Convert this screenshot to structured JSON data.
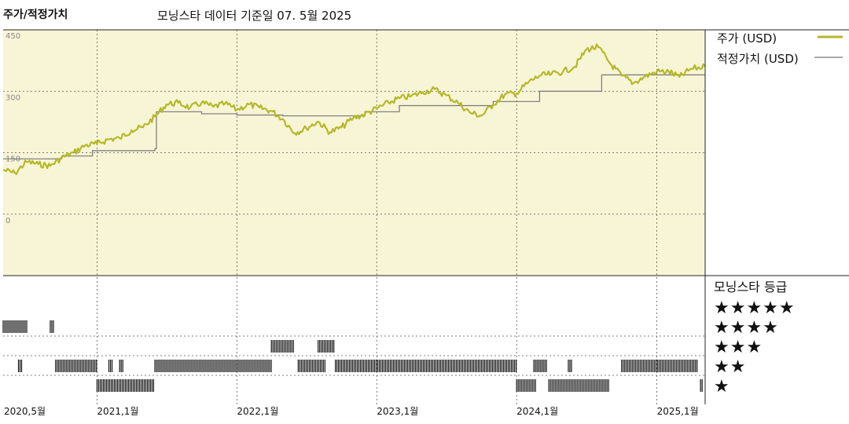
{
  "header": {
    "title": "주가/적정가치",
    "subtitle": "모닝스타 데이터 기준일 07. 5월 2025"
  },
  "legend": {
    "price_label": "주가 (USD)",
    "fair_label": "적정가치 (USD)"
  },
  "colors": {
    "price": "#b5b82a",
    "fair_value": "#777777",
    "plot_bg": "#f8f5d6",
    "star_band": "#111111"
  },
  "rating_panel": {
    "heading": "모닝스타 등급",
    "rows": [
      "★★★★★",
      "★★★★",
      "★★★",
      "★★",
      "★"
    ]
  },
  "chart_data": {
    "type": "line",
    "title": "주가/적정가치",
    "subtitle": "모닝스타 데이터 기준일 07. 5월 2025",
    "xlabel": "",
    "ylabel": "",
    "ylim": [
      -150,
      450
    ],
    "xlim": [
      "2020-05-01",
      "2025-05-07"
    ],
    "y_ticks": [
      0,
      150,
      300,
      450
    ],
    "y_tick_labels": [
      "0",
      "150",
      "300",
      "450"
    ],
    "x_ticks": [
      "2020-05-01",
      "2021-01-01",
      "2022-01-01",
      "2023-01-01",
      "2024-01-01",
      "2025-01-01"
    ],
    "x_tick_labels": [
      "2020,5월",
      "2021,1월",
      "2022,1월",
      "2023,1월",
      "2024,1월",
      "2025,1월"
    ],
    "grid": true,
    "legend_position": "right",
    "series": [
      {
        "name": "주가 (USD)",
        "points": [
          [
            "2020-05-01",
            108
          ],
          [
            "2020-06-01",
            100
          ],
          [
            "2020-07-01",
            128
          ],
          [
            "2020-08-01",
            122
          ],
          [
            "2020-09-01",
            118
          ],
          [
            "2020-10-01",
            138
          ],
          [
            "2020-11-01",
            150
          ],
          [
            "2020-12-01",
            168
          ],
          [
            "2021-01-01",
            172
          ],
          [
            "2021-02-01",
            183
          ],
          [
            "2021-03-01",
            185
          ],
          [
            "2021-04-01",
            205
          ],
          [
            "2021-05-01",
            212
          ],
          [
            "2021-06-01",
            238
          ],
          [
            "2021-07-01",
            268
          ],
          [
            "2021-08-01",
            272
          ],
          [
            "2021-09-01",
            260
          ],
          [
            "2021-10-01",
            272
          ],
          [
            "2021-11-01",
            262
          ],
          [
            "2021-12-01",
            270
          ],
          [
            "2022-01-01",
            255
          ],
          [
            "2022-02-01",
            268
          ],
          [
            "2022-03-01",
            260
          ],
          [
            "2022-04-01",
            252
          ],
          [
            "2022-05-01",
            232
          ],
          [
            "2022-06-01",
            198
          ],
          [
            "2022-07-01",
            210
          ],
          [
            "2022-08-01",
            226
          ],
          [
            "2022-09-01",
            200
          ],
          [
            "2022-10-01",
            212
          ],
          [
            "2022-11-01",
            235
          ],
          [
            "2022-12-01",
            244
          ],
          [
            "2023-01-01",
            258
          ],
          [
            "2023-02-01",
            272
          ],
          [
            "2023-03-01",
            283
          ],
          [
            "2023-04-01",
            288
          ],
          [
            "2023-05-01",
            298
          ],
          [
            "2023-06-01",
            305
          ],
          [
            "2023-07-01",
            290
          ],
          [
            "2023-08-01",
            272
          ],
          [
            "2023-09-01",
            248
          ],
          [
            "2023-10-01",
            240
          ],
          [
            "2023-11-01",
            268
          ],
          [
            "2023-12-01",
            292
          ],
          [
            "2024-01-01",
            295
          ],
          [
            "2024-02-01",
            322
          ],
          [
            "2024-03-01",
            338
          ],
          [
            "2024-04-01",
            342
          ],
          [
            "2024-05-01",
            348
          ],
          [
            "2024-06-01",
            360
          ],
          [
            "2024-07-01",
            402
          ],
          [
            "2024-08-01",
            408
          ],
          [
            "2024-09-01",
            368
          ],
          [
            "2024-10-01",
            338
          ],
          [
            "2024-11-01",
            320
          ],
          [
            "2024-12-01",
            336
          ],
          [
            "2025-01-01",
            348
          ],
          [
            "2025-02-01",
            348
          ],
          [
            "2025-03-01",
            335
          ],
          [
            "2025-04-01",
            355
          ],
          [
            "2025-05-07",
            360
          ]
        ]
      },
      {
        "name": "적정가치 (USD)",
        "step": true,
        "points": [
          [
            "2020-05-01",
            135
          ],
          [
            "2020-10-01",
            142
          ],
          [
            "2020-12-20",
            155
          ],
          [
            "2021-06-01",
            160
          ],
          [
            "2021-06-05",
            250
          ],
          [
            "2021-10-01",
            245
          ],
          [
            "2022-01-01",
            242
          ],
          [
            "2022-05-01",
            240
          ],
          [
            "2022-12-01",
            250
          ],
          [
            "2023-03-01",
            265
          ],
          [
            "2023-11-01",
            275
          ],
          [
            "2024-03-01",
            300
          ],
          [
            "2024-08-10",
            340
          ],
          [
            "2025-05-07",
            340
          ]
        ]
      }
    ],
    "star_rating_periods": [
      {
        "stars": 5,
        "from": "2020-05-01",
        "to": "2020-07-05"
      },
      {
        "stars": 5,
        "from": "2020-09-01",
        "to": "2020-09-10"
      },
      {
        "stars": 3,
        "from": "2020-06-10",
        "to": "2020-06-20"
      },
      {
        "stars": 3,
        "from": "2020-09-15",
        "to": "2021-01-01"
      },
      {
        "stars": 3,
        "from": "2021-02-01",
        "to": "2021-02-10"
      },
      {
        "stars": 3,
        "from": "2021-03-01",
        "to": "2021-03-10"
      },
      {
        "stars": 2,
        "from": "2021-01-01",
        "to": "2021-06-01"
      },
      {
        "stars": 3,
        "from": "2021-06-01",
        "to": "2022-04-01"
      },
      {
        "stars": 4,
        "from": "2022-04-01",
        "to": "2022-06-01"
      },
      {
        "stars": 3,
        "from": "2022-06-10",
        "to": "2022-08-20"
      },
      {
        "stars": 4,
        "from": "2022-08-01",
        "to": "2022-09-15"
      },
      {
        "stars": 3,
        "from": "2022-09-15",
        "to": "2024-01-01"
      },
      {
        "stars": 2,
        "from": "2024-01-01",
        "to": "2024-02-20"
      },
      {
        "stars": 3,
        "from": "2024-02-15",
        "to": "2024-03-20"
      },
      {
        "stars": 2,
        "from": "2024-03-25",
        "to": "2024-09-01"
      },
      {
        "stars": 3,
        "from": "2024-05-15",
        "to": "2024-05-25"
      },
      {
        "stars": 3,
        "from": "2024-10-01",
        "to": "2025-04-20"
      },
      {
        "stars": 2,
        "from": "2025-04-25",
        "to": "2025-05-01"
      }
    ]
  }
}
